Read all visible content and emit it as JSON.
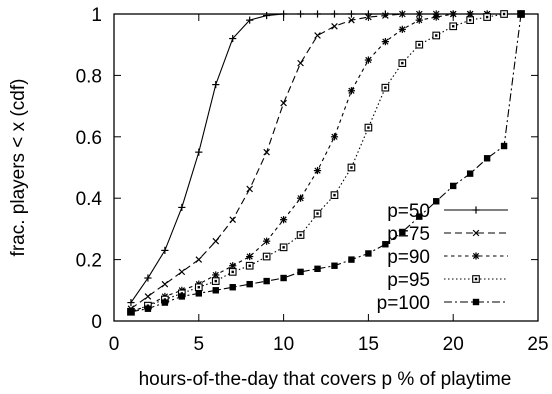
{
  "chart_data": {
    "type": "line",
    "title": "",
    "xlabel": "hours-of-the-day that covers p % of playtime",
    "ylabel": "frac. players < x (cdf)",
    "xlim": [
      0,
      25
    ],
    "ylim": [
      0,
      1
    ],
    "xticks": [
      "0",
      "5",
      "10",
      "15",
      "20",
      "25"
    ],
    "yticks": [
      "0",
      "0.2",
      "0.4",
      "0.6",
      "0.8",
      "1"
    ],
    "grid": false,
    "legend_position": "bottom-right",
    "x": [
      1,
      2,
      3,
      4,
      5,
      6,
      7,
      8,
      9,
      10,
      11,
      12,
      13,
      14,
      15,
      16,
      17,
      18,
      19,
      20,
      21,
      22,
      23,
      24
    ],
    "series": [
      {
        "name": "p=50",
        "marker": "plus",
        "dash": "solid",
        "values": [
          0.06,
          0.14,
          0.23,
          0.37,
          0.55,
          0.77,
          0.92,
          0.98,
          0.995,
          1.0,
          1.0,
          1.0,
          1.0,
          1.0,
          1.0,
          1.0,
          1.0,
          1.0,
          1.0,
          1.0,
          1.0,
          1.0,
          1.0,
          1.0
        ]
      },
      {
        "name": "p=75",
        "marker": "cross",
        "dash": "dashed",
        "values": [
          0.04,
          0.08,
          0.12,
          0.16,
          0.2,
          0.26,
          0.33,
          0.43,
          0.55,
          0.71,
          0.84,
          0.93,
          0.96,
          0.98,
          0.99,
          0.995,
          1.0,
          1.0,
          1.0,
          1.0,
          1.0,
          1.0,
          1.0,
          1.0
        ]
      },
      {
        "name": "p=90",
        "marker": "star",
        "dash": "short-dash",
        "values": [
          0.03,
          0.05,
          0.08,
          0.1,
          0.12,
          0.15,
          0.18,
          0.21,
          0.26,
          0.33,
          0.4,
          0.49,
          0.6,
          0.75,
          0.85,
          0.91,
          0.95,
          0.98,
          0.99,
          1.0,
          1.0,
          1.0,
          1.0,
          1.0
        ]
      },
      {
        "name": "p=95",
        "marker": "box",
        "dash": "dotted",
        "values": [
          0.03,
          0.05,
          0.07,
          0.09,
          0.11,
          0.13,
          0.16,
          0.18,
          0.21,
          0.24,
          0.28,
          0.35,
          0.41,
          0.5,
          0.63,
          0.76,
          0.84,
          0.9,
          0.93,
          0.96,
          0.98,
          0.99,
          1.0,
          1.0
        ]
      },
      {
        "name": "p=100",
        "marker": "filled-square",
        "dash": "dash-dot",
        "values": [
          0.03,
          0.04,
          0.06,
          0.08,
          0.09,
          0.1,
          0.11,
          0.12,
          0.13,
          0.14,
          0.16,
          0.17,
          0.18,
          0.2,
          0.22,
          0.25,
          0.29,
          0.34,
          0.39,
          0.44,
          0.48,
          0.53,
          0.57,
          1.0
        ]
      }
    ]
  }
}
